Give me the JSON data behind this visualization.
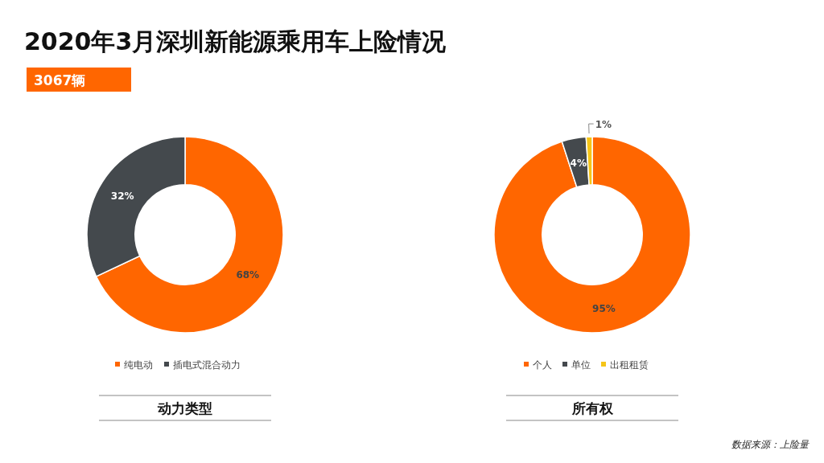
{
  "chart_data": [
    {
      "type": "donut",
      "title": "2020年3月深圳新能源乘用车上险情况",
      "subtitle": "3067辆",
      "xlabel": "动力类型",
      "categories": [
        "纯电动",
        "插电式混合动力"
      ],
      "values": [
        68,
        32
      ],
      "value_labels": [
        "68%",
        "32%"
      ],
      "colors": [
        "#ff6600",
        "#44494d"
      ],
      "legend": "bottom"
    },
    {
      "type": "donut",
      "xlabel": "所有权",
      "categories": [
        "个人",
        "单位",
        "出租租赁"
      ],
      "values": [
        95,
        4,
        1
      ],
      "value_labels": [
        "95%",
        "4%",
        "1%"
      ],
      "colors": [
        "#ff6600",
        "#44494d",
        "#f5c518"
      ],
      "legend": "bottom",
      "annotations": [
        "数据来源：上险量"
      ]
    }
  ]
}
